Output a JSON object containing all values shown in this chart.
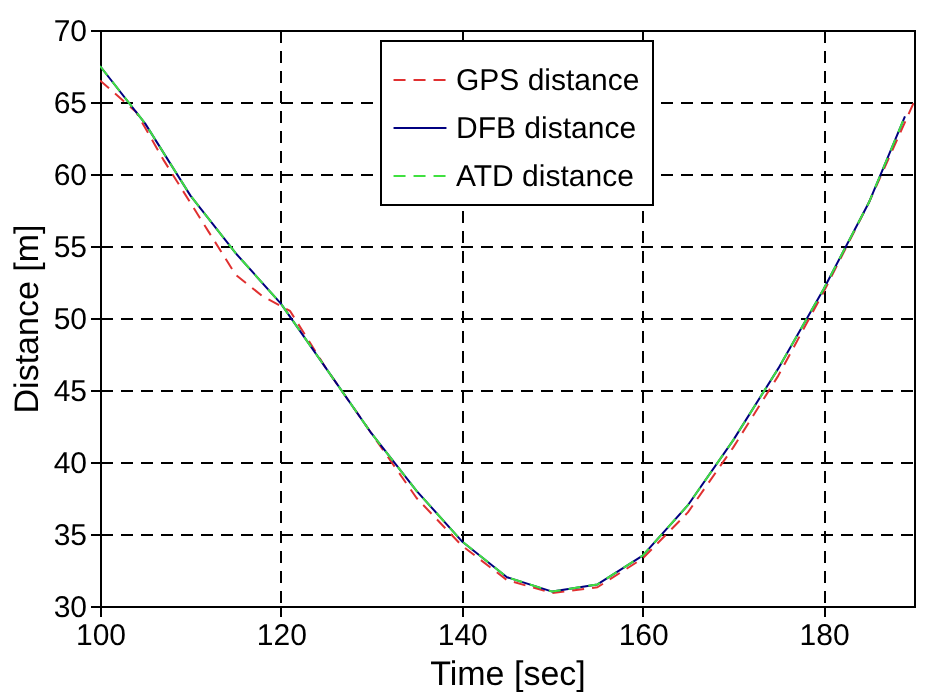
{
  "chart_data": {
    "type": "line",
    "xlabel": "Time [sec]",
    "ylabel": "Distance [m]",
    "xlim": [
      100,
      190
    ],
    "xticks": [
      100,
      120,
      140,
      160,
      180
    ],
    "ylim": [
      30,
      70
    ],
    "yticks": [
      30,
      35,
      40,
      45,
      50,
      55,
      60,
      65,
      70
    ],
    "grid": true,
    "legend": "top right",
    "series": [
      {
        "name": "GPS distance",
        "color": "#e03030",
        "line_style": "dashed",
        "x": [
          100,
          104,
          107,
          112,
          115,
          118,
          121,
          125,
          130,
          135,
          140,
          145,
          150,
          155,
          160,
          165,
          170,
          175,
          180,
          185,
          190
        ],
        "values": [
          66.5,
          64.3,
          61,
          56,
          53,
          51.5,
          50.5,
          46.5,
          42,
          37.5,
          34.2,
          31.8,
          30.9,
          31.3,
          33.3,
          36.5,
          41,
          46,
          51.8,
          58,
          65
        ]
      },
      {
        "name": "DFB distance",
        "color": "#000080",
        "line_style": "solid",
        "x": [
          100,
          105,
          110,
          115,
          120,
          125,
          130,
          135,
          140,
          145,
          150,
          155,
          160,
          165,
          170,
          175,
          180,
          185,
          189
        ],
        "values": [
          67.5,
          63.5,
          58.5,
          54.5,
          51,
          46.5,
          42,
          38,
          34.5,
          32,
          31,
          31.5,
          33.5,
          37,
          41.5,
          46.5,
          52,
          58,
          64
        ]
      },
      {
        "name": "ATD distance",
        "color": "#40e040",
        "line_style": "dashed",
        "x": [
          100,
          105,
          110,
          115,
          120,
          125,
          130,
          135,
          140,
          145,
          150,
          155,
          160,
          165,
          170,
          175,
          180,
          185,
          189
        ],
        "values": [
          67.5,
          63.5,
          58.5,
          54.5,
          51,
          46.5,
          42,
          38,
          34.5,
          32,
          31,
          31.5,
          33.5,
          37,
          41.5,
          46.5,
          52,
          58,
          64
        ]
      }
    ]
  }
}
